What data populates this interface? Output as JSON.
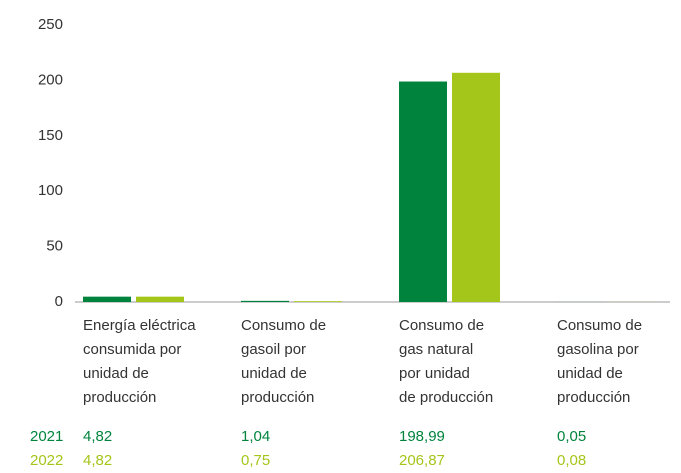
{
  "chart_data": {
    "type": "bar",
    "categories": [
      "Energía eléctrica\nconsumida por\nunidad de\nproducción",
      "Consumo de\ngasoil por\nunidad de\nproducción",
      "Consumo de\ngas natural\npor unidad\nde producción",
      "Consumo de\ngasolina por\nunidad de\nproducción"
    ],
    "series": [
      {
        "name": "2021",
        "color": "#00843d",
        "values": [
          4.82,
          1.04,
          198.99,
          0.05
        ],
        "value_labels": [
          "4,82",
          "1,04",
          "198,99",
          "0,05"
        ]
      },
      {
        "name": "2022",
        "color": "#a4c61a",
        "values": [
          4.82,
          0.75,
          206.87,
          0.08
        ],
        "value_labels": [
          "4,82",
          "0,75",
          "206,87",
          "0,08"
        ]
      }
    ],
    "ylim": [
      0,
      250
    ],
    "yticks": [
      0,
      50,
      100,
      150,
      200,
      250
    ]
  }
}
